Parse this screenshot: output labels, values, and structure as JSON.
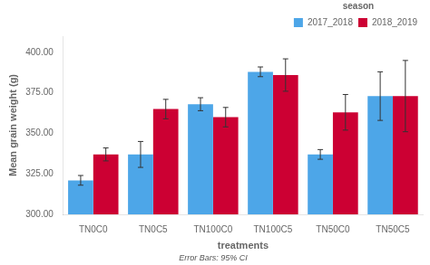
{
  "chart_data": {
    "type": "bar",
    "categories": [
      "TN0C0",
      "TN0C5",
      "TN100C0",
      "TN100C5",
      "TN50C0",
      "TN50C5"
    ],
    "series": [
      {
        "name": "2017_2018",
        "color": "#4da6e8",
        "values": [
          321,
          337,
          368,
          388,
          337,
          373
        ],
        "errors": [
          3,
          8,
          4,
          3,
          3,
          15
        ]
      },
      {
        "name": "2018_2019",
        "color": "#cc0033",
        "values": [
          337,
          365,
          360,
          386,
          363,
          373
        ],
        "errors": [
          4,
          6,
          6,
          10,
          11,
          22
        ]
      }
    ],
    "xlabel": "treatments",
    "ylabel": "Mean grain weight (g)",
    "legend_title": "season",
    "legend": "upper right",
    "annotations": [
      "Error Bars: 95% CI"
    ],
    "ylim": [
      300,
      410
    ],
    "yticks": [
      {
        "value": 300,
        "label": "300.00"
      },
      {
        "value": 325,
        "label": "325.00"
      },
      {
        "value": 350,
        "label": "350.00"
      },
      {
        "value": 375,
        "label": "375.00"
      },
      {
        "value": 400,
        "label": "400.00"
      }
    ],
    "grid": false
  }
}
